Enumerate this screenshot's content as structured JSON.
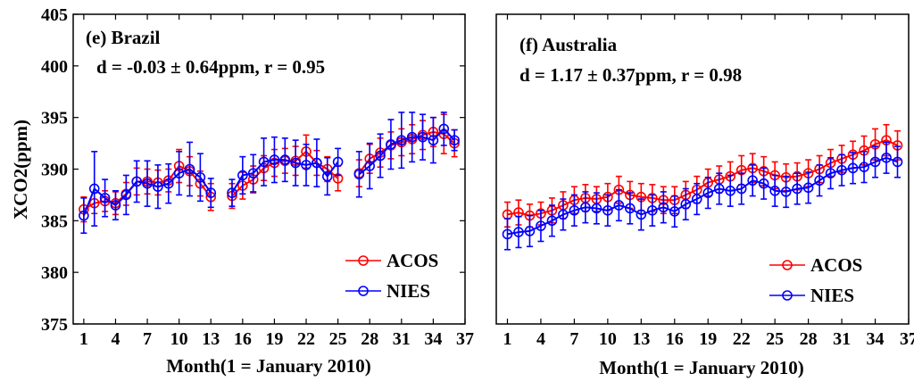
{
  "figure": {
    "ylabel": "XCO2(ppm)",
    "xlabel": "Month(1 = January 2010)"
  },
  "chart_data": [
    {
      "type": "line",
      "title": "(e) Brazil",
      "subtitle": "d = -0.03 ± 0.64ppm, r = 0.95",
      "xlabel": "Month(1 = January 2010)",
      "ylabel": "XCO2(ppm)",
      "xlim": [
        0,
        37
      ],
      "ylim": [
        375,
        405
      ],
      "xticks": [
        1,
        4,
        7,
        10,
        13,
        16,
        19,
        22,
        25,
        28,
        31,
        34,
        37
      ],
      "yticks": [
        375,
        380,
        385,
        390,
        395,
        400,
        405
      ],
      "legend": [
        "ACOS",
        "NIES"
      ],
      "legend_position": "bottom-right",
      "series": [
        {
          "name": "ACOS",
          "color": "#ff0000",
          "points": [
            [
              1,
              386.1,
              1.2
            ],
            [
              2,
              386.7,
              1.0
            ],
            [
              3,
              386.9,
              1.0
            ],
            [
              4,
              386.7,
              1.1
            ],
            [
              5,
              387.6,
              1.1
            ],
            [
              6,
              388.8,
              1.3
            ],
            [
              7,
              388.8,
              1.2
            ],
            [
              8,
              388.7,
              1.2
            ],
            [
              9,
              388.9,
              1.1
            ],
            [
              10,
              390.3,
              1.6
            ],
            [
              11,
              389.8,
              1.4
            ],
            [
              12,
              388.6,
              1.2
            ],
            [
              13,
              387.3,
              1.3
            ],
            [
              15,
              387.4,
              1.2
            ],
            [
              16,
              388.4,
              1.3
            ],
            [
              17,
              389.0,
              1.3
            ],
            [
              18,
              390.1,
              1.2
            ],
            [
              19,
              390.6,
              1.3
            ],
            [
              20,
              390.8,
              1.2
            ],
            [
              21,
              390.8,
              1.4
            ],
            [
              22,
              391.7,
              1.6
            ],
            [
              23,
              390.6,
              1.2
            ],
            [
              24,
              390.0,
              1.2
            ],
            [
              25,
              389.1,
              1.2
            ],
            [
              27,
              389.6,
              1.3
            ],
            [
              28,
              391.0,
              1.4
            ],
            [
              29,
              391.6,
              1.4
            ],
            [
              30,
              392.3,
              1.3
            ],
            [
              31,
              392.6,
              1.3
            ],
            [
              32,
              392.9,
              1.4
            ],
            [
              33,
              393.3,
              1.4
            ],
            [
              34,
              393.6,
              1.4
            ],
            [
              35,
              393.4,
              1.9
            ],
            [
              36,
              392.5,
              1.3
            ]
          ]
        },
        {
          "name": "NIES",
          "color": "#0000ff",
          "points": [
            [
              1,
              385.5,
              1.7
            ],
            [
              2,
              388.1,
              3.6
            ],
            [
              3,
              387.2,
              1.8
            ],
            [
              4,
              386.5,
              1.4
            ],
            [
              5,
              387.5,
              1.9
            ],
            [
              6,
              388.8,
              2.0
            ],
            [
              7,
              388.6,
              2.2
            ],
            [
              8,
              388.3,
              2.1
            ],
            [
              9,
              388.6,
              1.9
            ],
            [
              10,
              389.6,
              2.1
            ],
            [
              11,
              390.0,
              2.6
            ],
            [
              12,
              389.2,
              2.3
            ],
            [
              13,
              387.7,
              1.4
            ],
            [
              15,
              387.7,
              1.3
            ],
            [
              16,
              389.4,
              1.8
            ],
            [
              17,
              389.6,
              1.8
            ],
            [
              18,
              390.7,
              2.3
            ],
            [
              19,
              390.9,
              2.2
            ],
            [
              20,
              390.9,
              2.1
            ],
            [
              21,
              390.6,
              2.2
            ],
            [
              22,
              390.4,
              2.0
            ],
            [
              23,
              390.6,
              2.3
            ],
            [
              24,
              389.3,
              1.8
            ],
            [
              25,
              390.7,
              1.3
            ],
            [
              27,
              389.5,
              2.2
            ],
            [
              28,
              390.3,
              2.2
            ],
            [
              29,
              391.3,
              2.1
            ],
            [
              30,
              392.4,
              2.4
            ],
            [
              31,
              392.8,
              2.7
            ],
            [
              32,
              393.1,
              2.4
            ],
            [
              33,
              393.1,
              2.2
            ],
            [
              34,
              392.8,
              2.2
            ],
            [
              35,
              393.9,
              1.6
            ],
            [
              36,
              392.8,
              1.0
            ]
          ]
        }
      ]
    },
    {
      "type": "line",
      "title": "(f) Australia",
      "subtitle": "d = 1.17 ± 0.37ppm, r = 0.98",
      "xlabel": "Month(1 = January 2010)",
      "ylabel": "",
      "xlim": [
        0,
        37
      ],
      "ylim": [
        375,
        405
      ],
      "xticks": [
        1,
        4,
        7,
        10,
        13,
        16,
        19,
        22,
        25,
        28,
        31,
        34,
        37
      ],
      "yticks": [],
      "legend": [
        "ACOS",
        "NIES"
      ],
      "legend_position": "bottom-right",
      "series": [
        {
          "name": "ACOS",
          "color": "#ff0000",
          "points": [
            [
              1,
              385.6,
              1.2
            ],
            [
              2,
              385.8,
              1.2
            ],
            [
              3,
              385.5,
              1.1
            ],
            [
              4,
              385.7,
              1.1
            ],
            [
              5,
              386.0,
              1.2
            ],
            [
              6,
              386.5,
              1.3
            ],
            [
              7,
              387.0,
              1.3
            ],
            [
              8,
              387.2,
              1.3
            ],
            [
              9,
              387.1,
              1.2
            ],
            [
              10,
              387.3,
              1.3
            ],
            [
              11,
              388.0,
              1.3
            ],
            [
              12,
              387.5,
              1.3
            ],
            [
              13,
              387.3,
              1.3
            ],
            [
              14,
              387.2,
              1.3
            ],
            [
              15,
              387.0,
              1.3
            ],
            [
              16,
              387.0,
              1.3
            ],
            [
              17,
              387.5,
              1.3
            ],
            [
              18,
              388.0,
              1.3
            ],
            [
              19,
              388.7,
              1.3
            ],
            [
              20,
              389.0,
              1.3
            ],
            [
              21,
              389.3,
              1.4
            ],
            [
              22,
              389.9,
              1.4
            ],
            [
              23,
              390.1,
              1.4
            ],
            [
              24,
              389.8,
              1.4
            ],
            [
              25,
              389.4,
              1.3
            ],
            [
              26,
              389.2,
              1.3
            ],
            [
              27,
              389.3,
              1.3
            ],
            [
              28,
              389.6,
              1.3
            ],
            [
              29,
              390.0,
              1.3
            ],
            [
              30,
              390.6,
              1.3
            ],
            [
              31,
              391.0,
              1.3
            ],
            [
              32,
              391.4,
              1.3
            ],
            [
              33,
              391.8,
              1.4
            ],
            [
              34,
              392.4,
              1.5
            ],
            [
              35,
              392.8,
              1.5
            ],
            [
              36,
              392.3,
              1.4
            ]
          ]
        },
        {
          "name": "NIES",
          "color": "#0000ff",
          "points": [
            [
              1,
              383.7,
              1.5
            ],
            [
              2,
              383.9,
              1.5
            ],
            [
              3,
              384.0,
              1.5
            ],
            [
              4,
              384.5,
              1.5
            ],
            [
              5,
              385.0,
              1.5
            ],
            [
              6,
              385.6,
              1.5
            ],
            [
              7,
              386.0,
              1.5
            ],
            [
              8,
              386.3,
              1.5
            ],
            [
              9,
              386.2,
              1.5
            ],
            [
              10,
              386.0,
              1.5
            ],
            [
              11,
              386.5,
              1.5
            ],
            [
              12,
              386.2,
              1.5
            ],
            [
              13,
              385.6,
              1.5
            ],
            [
              14,
              386.0,
              1.5
            ],
            [
              15,
              386.3,
              1.5
            ],
            [
              16,
              385.9,
              1.5
            ],
            [
              17,
              386.6,
              1.5
            ],
            [
              18,
              387.1,
              1.5
            ],
            [
              19,
              387.7,
              1.5
            ],
            [
              20,
              388.1,
              1.5
            ],
            [
              21,
              387.9,
              1.5
            ],
            [
              22,
              388.1,
              1.5
            ],
            [
              23,
              388.9,
              1.5
            ],
            [
              24,
              388.6,
              1.5
            ],
            [
              25,
              387.9,
              1.5
            ],
            [
              26,
              387.8,
              1.5
            ],
            [
              27,
              388.1,
              1.5
            ],
            [
              28,
              388.2,
              1.5
            ],
            [
              29,
              388.9,
              1.5
            ],
            [
              30,
              389.6,
              1.5
            ],
            [
              31,
              389.9,
              1.5
            ],
            [
              32,
              390.1,
              1.5
            ],
            [
              33,
              390.2,
              1.5
            ],
            [
              34,
              390.7,
              1.5
            ],
            [
              35,
              391.1,
              1.5
            ],
            [
              36,
              390.7,
              1.5
            ]
          ]
        }
      ]
    }
  ]
}
